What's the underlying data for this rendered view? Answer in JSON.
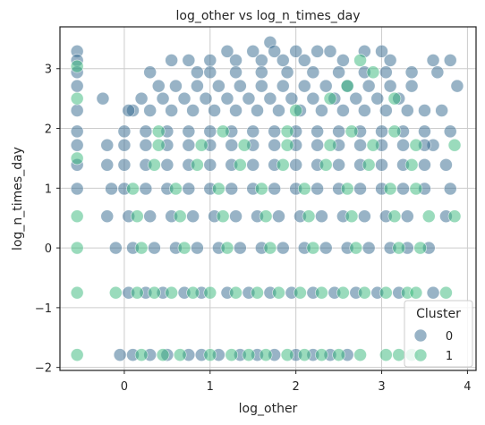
{
  "chart_data": {
    "type": "scatter",
    "title": "log_other vs log_n_times_day",
    "xlabel": "log_other",
    "ylabel": "log_n_times_day",
    "xlim": [
      -0.75,
      4.1
    ],
    "ylim": [
      -2.05,
      3.7
    ],
    "x_ticks": [
      0,
      1,
      2,
      3,
      4
    ],
    "y_ticks": [
      -2,
      -1,
      0,
      1,
      2,
      3
    ],
    "x_tick_labels": [
      "0",
      "1",
      "2",
      "3",
      "4"
    ],
    "y_tick_labels": [
      "−2",
      "−1",
      "0",
      "1",
      "2",
      "3"
    ],
    "grid": true,
    "legend": {
      "title": "Cluster",
      "placement": "lower-right",
      "entries": [
        {
          "label": "0",
          "color": "#31688e"
        },
        {
          "label": "1",
          "color": "#35b779"
        }
      ]
    },
    "series": [
      {
        "name": "0",
        "color": "#31688e",
        "points": [
          [
            -0.55,
            3.29
          ],
          [
            -0.55,
            3.14
          ],
          [
            -0.55,
            2.94
          ],
          [
            -0.55,
            2.71
          ],
          [
            -0.55,
            2.3
          ],
          [
            -0.55,
            1.95
          ],
          [
            -0.55,
            1.72
          ],
          [
            -0.55,
            1.39
          ],
          [
            -0.55,
            0.99
          ],
          [
            -0.25,
            2.5
          ],
          [
            -0.2,
            1.72
          ],
          [
            -0.2,
            1.39
          ],
          [
            -0.2,
            0.53
          ],
          [
            -0.15,
            0.99
          ],
          [
            0.1,
            2.3
          ],
          [
            0.2,
            2.5
          ],
          [
            0.3,
            2.94
          ],
          [
            0.4,
            2.71
          ],
          [
            0.55,
            3.14
          ],
          [
            0.75,
            3.14
          ],
          [
            0.85,
            2.94
          ],
          [
            1.0,
            3.14
          ],
          [
            1.2,
            3.29
          ],
          [
            1.3,
            3.14
          ],
          [
            1.5,
            3.29
          ],
          [
            1.6,
            3.14
          ],
          [
            1.7,
            3.44
          ],
          [
            1.75,
            3.29
          ],
          [
            1.85,
            3.14
          ],
          [
            2.0,
            3.29
          ],
          [
            2.1,
            3.14
          ],
          [
            2.25,
            3.29
          ],
          [
            2.4,
            3.29
          ],
          [
            2.55,
            3.14
          ],
          [
            2.8,
            3.29
          ],
          [
            3.0,
            3.29
          ],
          [
            3.1,
            3.14
          ],
          [
            3.35,
            2.94
          ],
          [
            3.6,
            3.14
          ],
          [
            3.65,
            2.94
          ],
          [
            3.8,
            3.14
          ],
          [
            3.88,
            2.71
          ],
          [
            3.5,
            2.3
          ],
          [
            3.7,
            2.3
          ],
          [
            3.8,
            1.95
          ],
          [
            3.6,
            1.72
          ],
          [
            3.75,
            1.39
          ],
          [
            3.8,
            0.99
          ],
          [
            3.75,
            0.53
          ],
          [
            3.55,
            0.0
          ],
          [
            3.6,
            -0.75
          ],
          [
            -0.05,
            -1.79
          ],
          [
            0.1,
            -1.79
          ],
          [
            0.3,
            -1.79
          ],
          [
            0.5,
            -1.79
          ],
          [
            0.75,
            -1.79
          ],
          [
            0.9,
            -1.79
          ],
          [
            1.1,
            -1.79
          ],
          [
            1.35,
            -1.79
          ],
          [
            1.55,
            -1.79
          ],
          [
            1.75,
            -1.79
          ],
          [
            2.0,
            -1.79
          ],
          [
            2.2,
            -1.79
          ],
          [
            2.4,
            -1.79
          ],
          [
            2.6,
            -1.79
          ],
          [
            0.05,
            -0.75
          ],
          [
            0.25,
            -0.75
          ],
          [
            0.45,
            -0.75
          ],
          [
            0.7,
            -0.75
          ],
          [
            0.9,
            -0.75
          ],
          [
            1.2,
            -0.75
          ],
          [
            1.45,
            -0.75
          ],
          [
            1.7,
            -0.75
          ],
          [
            1.95,
            -0.75
          ],
          [
            2.2,
            -0.75
          ],
          [
            2.45,
            -0.75
          ],
          [
            2.7,
            -0.75
          ],
          [
            2.95,
            -0.75
          ],
          [
            3.2,
            -0.75
          ],
          [
            -0.1,
            0.0
          ],
          [
            0.1,
            0.0
          ],
          [
            0.35,
            0.0
          ],
          [
            0.6,
            0.0
          ],
          [
            0.85,
            0.0
          ],
          [
            1.1,
            0.0
          ],
          [
            1.35,
            0.0
          ],
          [
            1.6,
            0.0
          ],
          [
            1.85,
            0.0
          ],
          [
            2.1,
            0.0
          ],
          [
            2.35,
            0.0
          ],
          [
            2.6,
            0.0
          ],
          [
            2.85,
            0.0
          ],
          [
            3.1,
            0.0
          ],
          [
            3.3,
            0.0
          ],
          [
            0.05,
            0.53
          ],
          [
            0.3,
            0.53
          ],
          [
            0.55,
            0.53
          ],
          [
            0.8,
            0.53
          ],
          [
            1.05,
            0.53
          ],
          [
            1.3,
            0.53
          ],
          [
            1.55,
            0.53
          ],
          [
            1.8,
            0.53
          ],
          [
            2.05,
            0.53
          ],
          [
            2.3,
            0.53
          ],
          [
            2.55,
            0.53
          ],
          [
            2.8,
            0.53
          ],
          [
            3.05,
            0.53
          ],
          [
            3.3,
            0.53
          ],
          [
            0.0,
            0.99
          ],
          [
            0.25,
            0.99
          ],
          [
            0.5,
            0.99
          ],
          [
            0.75,
            0.99
          ],
          [
            1.0,
            0.99
          ],
          [
            1.25,
            0.99
          ],
          [
            1.5,
            0.99
          ],
          [
            1.75,
            0.99
          ],
          [
            2.0,
            0.99
          ],
          [
            2.25,
            0.99
          ],
          [
            2.5,
            0.99
          ],
          [
            2.75,
            0.99
          ],
          [
            3.0,
            0.99
          ],
          [
            3.25,
            0.99
          ],
          [
            3.5,
            0.99
          ],
          [
            0.0,
            1.39
          ],
          [
            0.25,
            1.39
          ],
          [
            0.5,
            1.39
          ],
          [
            0.75,
            1.39
          ],
          [
            1.0,
            1.39
          ],
          [
            1.25,
            1.39
          ],
          [
            1.5,
            1.39
          ],
          [
            1.75,
            1.39
          ],
          [
            2.0,
            1.39
          ],
          [
            2.25,
            1.39
          ],
          [
            2.5,
            1.39
          ],
          [
            2.75,
            1.39
          ],
          [
            3.0,
            1.39
          ],
          [
            3.25,
            1.39
          ],
          [
            3.5,
            1.39
          ],
          [
            0.0,
            1.72
          ],
          [
            0.25,
            1.72
          ],
          [
            0.5,
            1.72
          ],
          [
            0.75,
            1.72
          ],
          [
            1.0,
            1.72
          ],
          [
            1.25,
            1.72
          ],
          [
            1.5,
            1.72
          ],
          [
            1.75,
            1.72
          ],
          [
            2.0,
            1.72
          ],
          [
            2.25,
            1.72
          ],
          [
            2.5,
            1.72
          ],
          [
            2.75,
            1.72
          ],
          [
            3.0,
            1.72
          ],
          [
            3.25,
            1.72
          ],
          [
            3.5,
            1.72
          ],
          [
            0.0,
            1.95
          ],
          [
            0.25,
            1.95
          ],
          [
            0.5,
            1.95
          ],
          [
            0.75,
            1.95
          ],
          [
            1.0,
            1.95
          ],
          [
            1.25,
            1.95
          ],
          [
            1.5,
            1.95
          ],
          [
            1.75,
            1.95
          ],
          [
            2.0,
            1.95
          ],
          [
            2.25,
            1.95
          ],
          [
            2.5,
            1.95
          ],
          [
            2.75,
            1.95
          ],
          [
            3.0,
            1.95
          ],
          [
            3.25,
            1.95
          ],
          [
            3.5,
            1.95
          ],
          [
            0.05,
            2.3
          ],
          [
            0.3,
            2.3
          ],
          [
            0.55,
            2.3
          ],
          [
            0.8,
            2.3
          ],
          [
            1.05,
            2.3
          ],
          [
            1.3,
            2.3
          ],
          [
            1.55,
            2.3
          ],
          [
            1.8,
            2.3
          ],
          [
            2.05,
            2.3
          ],
          [
            2.3,
            2.3
          ],
          [
            2.55,
            2.3
          ],
          [
            2.8,
            2.3
          ],
          [
            3.05,
            2.3
          ],
          [
            3.3,
            2.3
          ],
          [
            0.45,
            2.5
          ],
          [
            0.7,
            2.5
          ],
          [
            0.95,
            2.5
          ],
          [
            1.2,
            2.5
          ],
          [
            1.45,
            2.5
          ],
          [
            1.7,
            2.5
          ],
          [
            1.95,
            2.5
          ],
          [
            2.2,
            2.5
          ],
          [
            2.45,
            2.5
          ],
          [
            2.7,
            2.5
          ],
          [
            2.95,
            2.5
          ],
          [
            3.2,
            2.5
          ],
          [
            0.6,
            2.71
          ],
          [
            0.85,
            2.71
          ],
          [
            1.1,
            2.71
          ],
          [
            1.35,
            2.71
          ],
          [
            1.6,
            2.71
          ],
          [
            1.85,
            2.71
          ],
          [
            2.1,
            2.71
          ],
          [
            2.35,
            2.71
          ],
          [
            2.6,
            2.71
          ],
          [
            2.85,
            2.71
          ],
          [
            3.1,
            2.71
          ],
          [
            3.35,
            2.71
          ],
          [
            1.0,
            2.94
          ],
          [
            1.3,
            2.94
          ],
          [
            1.6,
            2.94
          ],
          [
            1.9,
            2.94
          ],
          [
            2.2,
            2.94
          ],
          [
            2.5,
            2.94
          ],
          [
            2.8,
            2.94
          ],
          [
            3.05,
            2.94
          ]
        ]
      },
      {
        "name": "1",
        "color": "#35b779",
        "points": [
          [
            -0.55,
            3.04
          ],
          [
            -0.55,
            2.5
          ],
          [
            -0.55,
            1.5
          ],
          [
            -0.55,
            0.53
          ],
          [
            -0.55,
            0.0
          ],
          [
            -0.55,
            -0.75
          ],
          [
            -0.55,
            -1.79
          ],
          [
            0.2,
            -1.79
          ],
          [
            0.45,
            -1.79
          ],
          [
            0.65,
            -1.79
          ],
          [
            1.0,
            -1.79
          ],
          [
            1.25,
            -1.79
          ],
          [
            1.45,
            -1.79
          ],
          [
            1.65,
            -1.79
          ],
          [
            1.9,
            -1.79
          ],
          [
            2.1,
            -1.79
          ],
          [
            2.3,
            -1.79
          ],
          [
            2.5,
            -1.79
          ],
          [
            2.75,
            -1.79
          ],
          [
            3.05,
            -1.79
          ],
          [
            3.2,
            -1.79
          ],
          [
            3.35,
            -1.79
          ],
          [
            -0.1,
            -0.75
          ],
          [
            0.15,
            -0.75
          ],
          [
            0.35,
            -0.75
          ],
          [
            0.55,
            -0.75
          ],
          [
            0.8,
            -0.75
          ],
          [
            1.0,
            -0.75
          ],
          [
            1.3,
            -0.75
          ],
          [
            1.55,
            -0.75
          ],
          [
            1.8,
            -0.75
          ],
          [
            2.05,
            -0.75
          ],
          [
            2.3,
            -0.75
          ],
          [
            2.55,
            -0.75
          ],
          [
            2.8,
            -0.75
          ],
          [
            3.05,
            -0.75
          ],
          [
            3.3,
            -0.75
          ],
          [
            3.4,
            -0.75
          ],
          [
            3.75,
            -0.75
          ],
          [
            0.2,
            0.0
          ],
          [
            0.7,
            0.0
          ],
          [
            1.2,
            0.0
          ],
          [
            1.7,
            0.0
          ],
          [
            2.2,
            0.0
          ],
          [
            2.7,
            0.0
          ],
          [
            3.2,
            0.0
          ],
          [
            3.45,
            0.0
          ],
          [
            0.15,
            0.53
          ],
          [
            0.65,
            0.53
          ],
          [
            1.15,
            0.53
          ],
          [
            1.65,
            0.53
          ],
          [
            2.15,
            0.53
          ],
          [
            2.65,
            0.53
          ],
          [
            3.15,
            0.53
          ],
          [
            3.55,
            0.53
          ],
          [
            3.85,
            0.53
          ],
          [
            0.1,
            0.99
          ],
          [
            0.6,
            0.99
          ],
          [
            1.1,
            0.99
          ],
          [
            1.6,
            0.99
          ],
          [
            2.1,
            0.99
          ],
          [
            2.6,
            0.99
          ],
          [
            3.1,
            0.99
          ],
          [
            3.4,
            0.99
          ],
          [
            0.35,
            1.39
          ],
          [
            0.85,
            1.39
          ],
          [
            1.35,
            1.39
          ],
          [
            1.85,
            1.39
          ],
          [
            2.35,
            1.39
          ],
          [
            2.85,
            1.39
          ],
          [
            3.35,
            1.39
          ],
          [
            0.4,
            1.72
          ],
          [
            0.9,
            1.72
          ],
          [
            1.4,
            1.72
          ],
          [
            1.9,
            1.72
          ],
          [
            2.4,
            1.72
          ],
          [
            2.9,
            1.72
          ],
          [
            3.4,
            1.72
          ],
          [
            3.85,
            1.72
          ],
          [
            0.4,
            1.95
          ],
          [
            1.15,
            1.95
          ],
          [
            1.9,
            1.95
          ],
          [
            2.65,
            1.95
          ],
          [
            3.15,
            1.95
          ],
          [
            2.0,
            2.3
          ],
          [
            2.4,
            2.5
          ],
          [
            2.6,
            2.71
          ],
          [
            2.75,
            3.14
          ],
          [
            2.9,
            2.94
          ],
          [
            3.15,
            2.5
          ]
        ]
      }
    ]
  }
}
